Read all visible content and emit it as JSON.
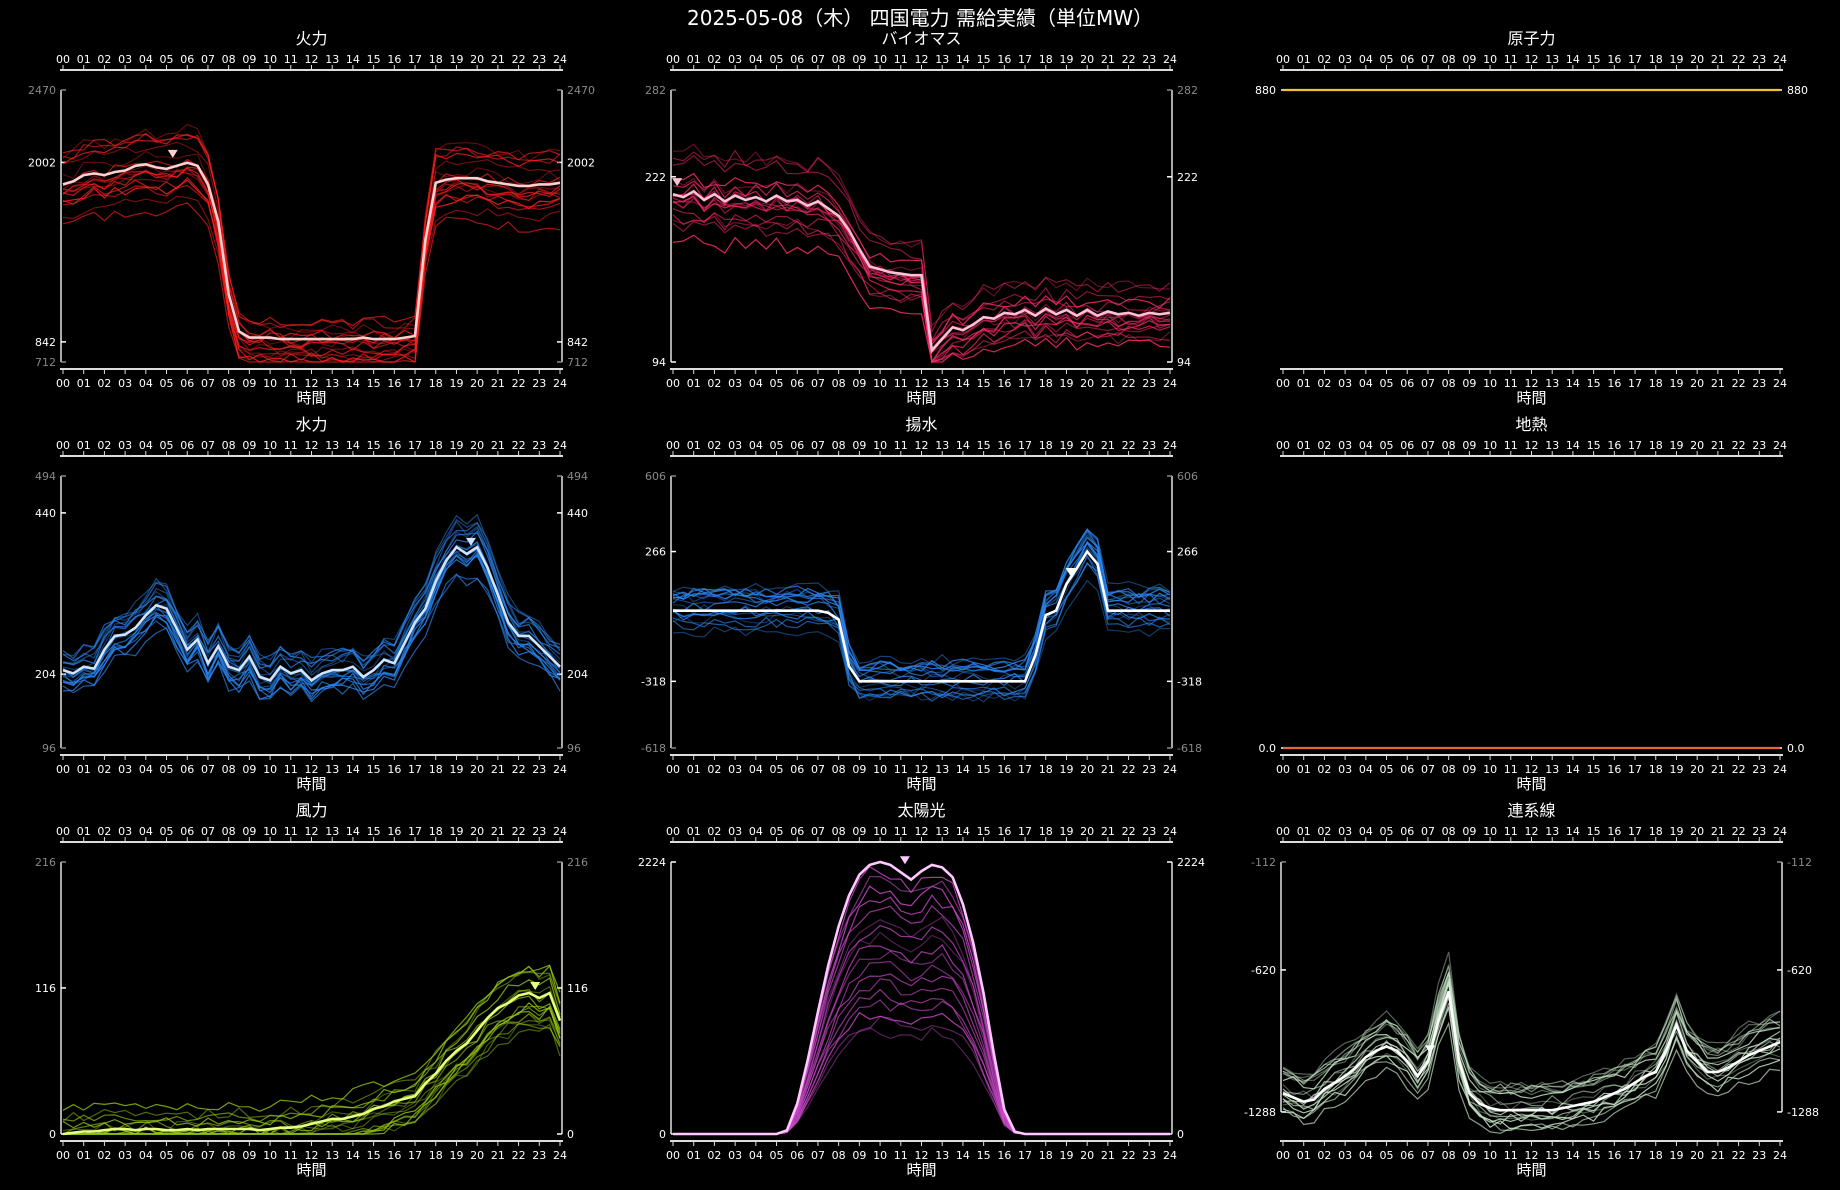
{
  "page": {
    "title": "2025-05-08（木） 四国電力 需給実績（単位MW）",
    "x_axis_label": "時間"
  },
  "hour_ticks": [
    "00",
    "01",
    "02",
    "03",
    "04",
    "05",
    "06",
    "07",
    "08",
    "09",
    "10",
    "11",
    "12",
    "13",
    "14",
    "15",
    "16",
    "17",
    "18",
    "19",
    "20",
    "21",
    "22",
    "23",
    "24"
  ],
  "chart_data": [
    {
      "type": "line",
      "title": "火力",
      "color": "#ff2020",
      "highlight_color": "#ffd0d0",
      "ylim": [
        712,
        2470
      ],
      "outer_ticks": [
        2470,
        712
      ],
      "inner_ticks": [
        2002,
        842
      ],
      "peak_marker": {
        "x": 5.3
      },
      "series": [
        {
          "highlight": true,
          "values": [
            1860,
            1880,
            1920,
            1930,
            1920,
            1940,
            1950,
            1980,
            1990,
            1970,
            1960,
            1980,
            2000,
            1980,
            1860,
            1620,
            1150,
            910,
            870,
            870,
            870,
            860,
            860,
            860,
            860,
            860,
            860,
            860,
            860,
            870,
            860,
            860,
            860,
            870,
            880,
            1500,
            1870,
            1890,
            1900,
            1900,
            1900,
            1880,
            1870,
            1860,
            1850,
            1850,
            1860,
            1860,
            1870
          ]
        }
      ]
    },
    {
      "type": "line",
      "title": "バイオマス",
      "color": "#ff2b6a",
      "highlight_color": "#ffc0d8",
      "ylim": [
        94,
        282
      ],
      "outer_ticks": [
        282
      ],
      "inner_ticks": [
        222,
        94
      ],
      "peak_marker": {
        "x": 0.2
      },
      "series": [
        {
          "highlight": true,
          "values": [
            210,
            208,
            212,
            206,
            210,
            205,
            209,
            206,
            208,
            205,
            209,
            205,
            206,
            202,
            205,
            200,
            195,
            185,
            172,
            160,
            158,
            156,
            155,
            154,
            154,
            102,
            110,
            118,
            116,
            120,
            125,
            124,
            128,
            127,
            130,
            126,
            131,
            127,
            130,
            126,
            130,
            126,
            129,
            127,
            128,
            126,
            128,
            127,
            128
          ]
        }
      ]
    },
    {
      "type": "line",
      "title": "原子力",
      "color": "#f2c230",
      "ylim": [
        0,
        880
      ],
      "inner_ticks": [
        880
      ],
      "series": [
        {
          "name": "",
          "values": [
            880,
            880,
            880,
            880,
            880,
            880,
            880,
            880,
            880,
            880,
            880,
            880,
            880,
            880,
            880,
            880,
            880,
            880,
            880,
            880,
            880,
            880,
            880,
            880,
            880,
            880,
            880,
            880,
            880,
            880,
            880,
            880,
            880,
            880,
            880,
            880,
            880,
            880,
            880,
            880,
            880,
            880,
            880,
            880,
            880,
            880,
            880,
            880,
            880
          ]
        }
      ]
    },
    {
      "type": "line",
      "title": "水力",
      "color": "#2b86f0",
      "highlight_color": "#cfe4ff",
      "ylim": [
        96,
        494
      ],
      "outer_ticks": [
        494,
        96
      ],
      "inner_ticks": [
        440,
        204
      ],
      "peak_marker": {
        "x": 19.7
      },
      "series": [
        {
          "highlight": true,
          "values": [
            210,
            205,
            215,
            212,
            240,
            260,
            262,
            272,
            290,
            305,
            300,
            270,
            240,
            255,
            220,
            245,
            215,
            210,
            230,
            200,
            195,
            215,
            205,
            210,
            195,
            205,
            210,
            210,
            215,
            200,
            210,
            225,
            220,
            250,
            280,
            300,
            340,
            370,
            390,
            380,
            390,
            360,
            320,
            280,
            260,
            260,
            245,
            230,
            215
          ]
        }
      ]
    },
    {
      "type": "line",
      "title": "揚水",
      "color": "#2b86f0",
      "highlight_color": "#ffffff",
      "ylim": [
        -618,
        606
      ],
      "outer_ticks": [
        606,
        -618
      ],
      "inner_ticks": [
        266,
        -318
      ],
      "peak_marker": {
        "x": 19.2
      },
      "series": [
        {
          "highlight": true,
          "values": [
            0,
            0,
            0,
            0,
            0,
            0,
            0,
            0,
            0,
            0,
            0,
            0,
            0,
            0,
            0,
            -10,
            -40,
            -250,
            -318,
            -318,
            -318,
            -318,
            -318,
            -318,
            -318,
            -318,
            -318,
            -318,
            -318,
            -318,
            -318,
            -318,
            -318,
            -318,
            -318,
            -200,
            -20,
            0,
            120,
            190,
            266,
            210,
            0,
            0,
            0,
            0,
            0,
            0,
            0
          ]
        }
      ]
    },
    {
      "type": "line",
      "title": "地熱",
      "color": "#e06a30",
      "ylim": [
        0,
        1
      ],
      "inner_ticks_text": [
        "0.0"
      ],
      "series": [
        {
          "name": "",
          "values": [
            0,
            0,
            0,
            0,
            0,
            0,
            0,
            0,
            0,
            0,
            0,
            0,
            0,
            0,
            0,
            0,
            0,
            0,
            0,
            0,
            0,
            0,
            0,
            0,
            0,
            0,
            0,
            0,
            0,
            0,
            0,
            0,
            0,
            0,
            0,
            0,
            0,
            0,
            0,
            0,
            0,
            0,
            0,
            0,
            0,
            0,
            0,
            0,
            0
          ]
        }
      ]
    },
    {
      "type": "line",
      "title": "風力",
      "color": "#9acd16",
      "highlight_color": "#e6ff80",
      "ylim": [
        0,
        216
      ],
      "outer_ticks": [
        216
      ],
      "inner_ticks": [
        116,
        0
      ],
      "peak_marker": {
        "x": 22.8
      },
      "series": [
        {
          "highlight": true,
          "values": [
            0,
            1,
            2,
            2,
            3,
            4,
            4,
            3,
            4,
            4,
            3,
            3,
            4,
            3,
            4,
            4,
            4,
            4,
            4,
            3,
            4,
            5,
            5,
            6,
            8,
            10,
            12,
            12,
            14,
            16,
            20,
            22,
            26,
            28,
            30,
            40,
            48,
            58,
            66,
            72,
            82,
            92,
            100,
            104,
            110,
            112,
            108,
            112,
            90
          ]
        }
      ]
    },
    {
      "type": "area",
      "title": "太陽光",
      "color": "#d24bd2",
      "highlight_color": "#ffc8ff",
      "ylim": [
        0,
        2224
      ],
      "inner_ticks": [
        2224,
        0
      ],
      "peak_marker": {
        "x": 11.2
      },
      "series": [
        {
          "highlight": true,
          "values": [
            0,
            0,
            0,
            0,
            0,
            0,
            0,
            0,
            0,
            0,
            0,
            30,
            250,
            600,
            1000,
            1380,
            1700,
            1950,
            2120,
            2200,
            2224,
            2200,
            2140,
            2080,
            2150,
            2200,
            2180,
            2100,
            1880,
            1560,
            1150,
            650,
            200,
            20,
            0,
            0,
            0,
            0,
            0,
            0,
            0,
            0,
            0,
            0,
            0,
            0,
            0,
            0,
            0
          ]
        }
      ]
    },
    {
      "type": "line",
      "title": "連系線",
      "color": "#c8e6c8",
      "highlight_color": "#ffffff",
      "ylim": [
        -1392,
        -112
      ],
      "outer_ticks": [
        -112
      ],
      "inner_ticks": [
        -620,
        -1288
      ],
      "peak_marker": {
        "x": 7.1
      },
      "series": [
        {
          "highlight": true,
          "values": [
            -1200,
            -1220,
            -1240,
            -1230,
            -1180,
            -1150,
            -1120,
            -1080,
            -1030,
            -1000,
            -980,
            -1000,
            -1050,
            -1120,
            -1050,
            -860,
            -720,
            -1050,
            -1200,
            -1250,
            -1270,
            -1280,
            -1280,
            -1280,
            -1280,
            -1280,
            -1280,
            -1270,
            -1260,
            -1250,
            -1240,
            -1220,
            -1200,
            -1180,
            -1150,
            -1120,
            -1100,
            -1000,
            -880,
            -1000,
            -1050,
            -1100,
            -1100,
            -1080,
            -1050,
            -1020,
            -1000,
            -980,
            -960
          ]
        }
      ]
    }
  ]
}
